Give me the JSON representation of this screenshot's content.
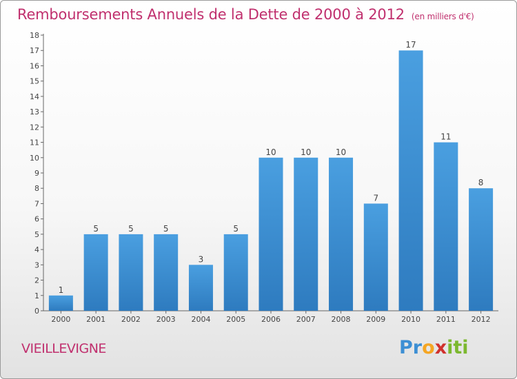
{
  "chart_data": {
    "type": "bar",
    "title": "Remboursements Annuels de la Dette de 2000 à 2012",
    "subtitle": "(en milliers d'€)",
    "xlabel": "",
    "ylabel": "",
    "categories": [
      "2000",
      "2001",
      "2002",
      "2003",
      "2004",
      "2005",
      "2006",
      "2007",
      "2008",
      "2009",
      "2010",
      "2011",
      "2012"
    ],
    "values": [
      1,
      5,
      5,
      5,
      3,
      5,
      10,
      10,
      10,
      7,
      17,
      11,
      8
    ],
    "ylim": [
      0,
      18
    ],
    "yticks": [
      0,
      1,
      2,
      3,
      4,
      5,
      6,
      7,
      8,
      9,
      10,
      11,
      12,
      13,
      14,
      15,
      16,
      17,
      18
    ],
    "grid": false,
    "bar_color": "#4a9fe0",
    "bar_color_dark": "#2e7bbf"
  },
  "footer": {
    "commune": "VIEILLEVIGNE",
    "logo_letters": [
      "P",
      "r",
      "o",
      "x",
      "i",
      "t",
      "i"
    ],
    "logo_colors": [
      "#3d8fd4",
      "#3d8fd4",
      "#f5a623",
      "#d0312d",
      "#7cb82f",
      "#7cb82f",
      "#7cb82f"
    ]
  },
  "colors": {
    "accent": "#c0306e"
  }
}
